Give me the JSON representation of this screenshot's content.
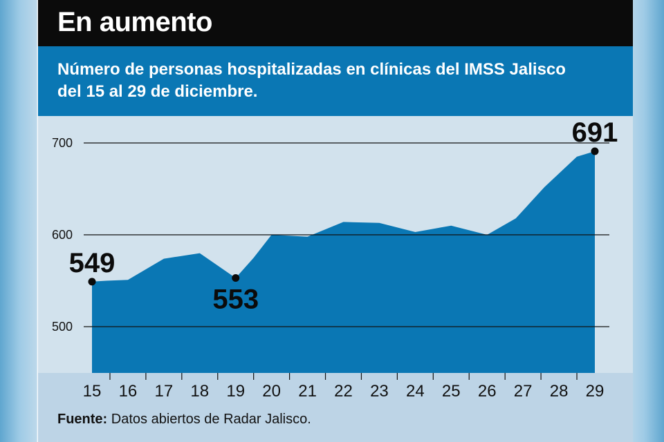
{
  "header": {
    "title": "En aumento",
    "subtitle": "Número de personas hospitalizadas en clínicas del IMSS Jalisco del 15 al 29 de diciembre."
  },
  "footer": {
    "source_label": "Fuente:",
    "source_text": " Datos abiertos de Radar Jalisco."
  },
  "colors": {
    "area": "#0a77b4",
    "title_bg": "#0b0b0b",
    "subtitle_bg": "#0a77b4",
    "plot_bg": "#d2e2ed",
    "axis_bg": "#bdd4e6"
  },
  "chart_data": {
    "type": "area",
    "title": "En aumento",
    "subtitle": "Número de personas hospitalizadas en clínicas del IMSS Jalisco del 15 al 29 de diciembre.",
    "x": [
      15,
      15.4,
      16,
      17,
      18,
      19,
      19.5,
      20,
      21,
      22,
      23,
      24,
      25,
      26,
      26.8,
      27.6,
      28.5,
      29
    ],
    "values": [
      549,
      550,
      551,
      574,
      580,
      553,
      575,
      600,
      598,
      614,
      613,
      603,
      610,
      600,
      618,
      652,
      685,
      691
    ],
    "x_ticks": [
      "15",
      "16",
      "17",
      "18",
      "19",
      "20",
      "21",
      "22",
      "23",
      "24",
      "25",
      "26",
      "27",
      "28",
      "29"
    ],
    "y_ticks": [
      "500",
      "600",
      "700"
    ],
    "ylim": [
      450,
      720
    ],
    "grid": "horizontal",
    "labels": [
      {
        "x": 15,
        "value": 549,
        "text": "549",
        "position": "above"
      },
      {
        "x": 19,
        "value": 553,
        "text": "553",
        "position": "below"
      },
      {
        "x": 29,
        "value": 691,
        "text": "691",
        "position": "above"
      }
    ]
  }
}
